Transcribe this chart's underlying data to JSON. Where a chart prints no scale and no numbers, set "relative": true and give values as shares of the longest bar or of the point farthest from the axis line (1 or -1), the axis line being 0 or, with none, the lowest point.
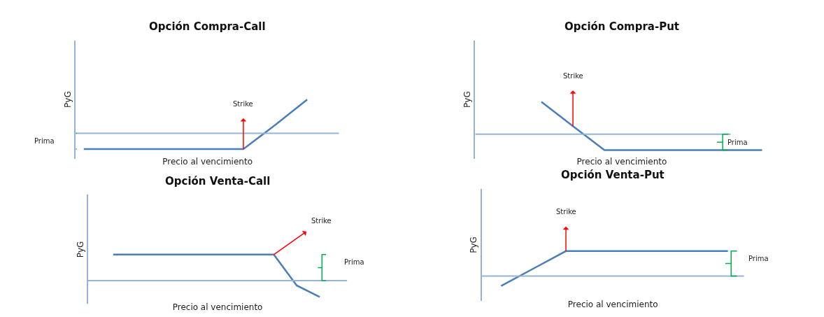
{
  "chart_data": [
    {
      "type": "line",
      "title": "Opción Compra-Call",
      "xlabel": "Precio al vencimiento",
      "ylabel": "PyG",
      "relative": true,
      "categories": [
        null,
        null,
        null,
        null,
        null,
        null,
        null,
        null
      ],
      "series": [
        {
          "color": "#4a7ebb",
          "values": [
            -0.47,
            -0.47,
            -0.47,
            -0.47,
            -0.47,
            -0.47,
            0.25,
            1
          ]
        }
      ],
      "ref_lines": [
        {
          "axis": "y",
          "value": 0,
          "color": "#95b3d7"
        }
      ],
      "annotations": [
        "Strike",
        "Prima"
      ]
    },
    {
      "type": "line",
      "title": "Opción Compra-Put",
      "xlabel": "Precio al vencimiento",
      "ylabel": "PyG",
      "relative": true,
      "categories": [
        null,
        null,
        null,
        null,
        null,
        null,
        null,
        null
      ],
      "series": [
        {
          "color": "#4a7ebb",
          "values": [
            1,
            0.25,
            -0.49,
            -0.49,
            -0.49,
            -0.49,
            -0.49,
            -0.49
          ]
        }
      ],
      "ref_lines": [
        {
          "axis": "y",
          "value": 0,
          "color": "#95b3d7"
        }
      ],
      "annotations": [
        "Strike",
        "Prima"
      ]
    },
    {
      "type": "line",
      "title": "Opción Venta-Call",
      "xlabel": "Precio al vencimiento",
      "ylabel": "PyG",
      "relative": true,
      "categories": [
        null,
        null,
        null,
        null,
        null,
        null,
        null,
        null,
        null,
        null
      ],
      "series": [
        {
          "color": "#4a7ebb",
          "values": [
            1,
            1,
            1,
            1,
            1,
            1,
            1,
            1,
            -0.19,
            -0.63
          ]
        }
      ],
      "ref_lines": [
        {
          "axis": "y",
          "value": 0,
          "color": "#95b3d7"
        }
      ],
      "annotations": [
        "Strike",
        "Prima"
      ]
    },
    {
      "type": "line",
      "title": "Opción Venta-Put",
      "xlabel": "Precio al vencimiento",
      "ylabel": "PyG",
      "relative": true,
      "categories": [
        null,
        null,
        null,
        null,
        null,
        null,
        null,
        null
      ],
      "series": [
        {
          "color": "#4a7ebb",
          "values": [
            -0.4,
            0.3,
            1,
            1,
            1,
            1,
            1,
            1
          ]
        }
      ],
      "ref_lines": [
        {
          "axis": "y",
          "value": 0,
          "color": "#95b3d7"
        }
      ],
      "annotations": [
        "Strike",
        "Prima"
      ]
    }
  ]
}
